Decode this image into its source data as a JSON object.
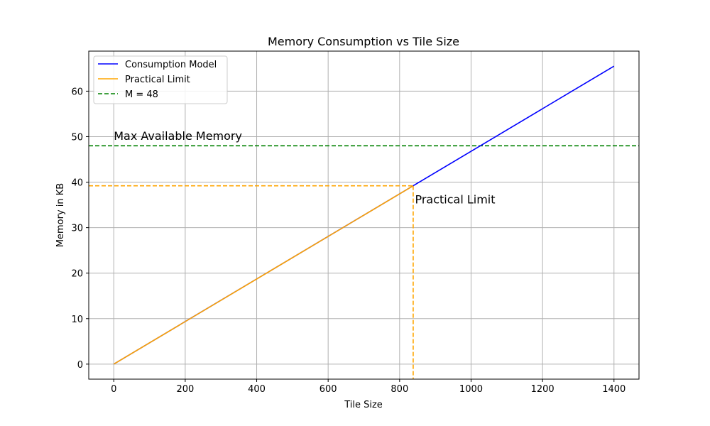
{
  "chart_data": {
    "type": "line",
    "title": "Memory Consumption vs Tile Size",
    "xlabel": "Tile Size",
    "ylabel": "Memory in KB",
    "xlim": [
      -70,
      1470
    ],
    "ylim": [
      -3.3,
      68.8
    ],
    "xticks": [
      0,
      200,
      400,
      600,
      800,
      1000,
      1200,
      1400
    ],
    "yticks": [
      0,
      10,
      20,
      30,
      40,
      50,
      60
    ],
    "grid": true,
    "legend_position": "top-left",
    "series": [
      {
        "name": "Consumption Model",
        "color": "#0000ff",
        "style": "solid",
        "x": [
          0,
          1400
        ],
        "y": [
          0,
          65.5
        ]
      },
      {
        "name": "Practical Limit",
        "color": "#ffa500",
        "style": "solid",
        "x": [
          0,
          838
        ],
        "y": [
          0,
          39.2
        ]
      }
    ],
    "reference_lines": [
      {
        "name": "M = 48",
        "orientation": "horizontal",
        "value": 48,
        "color": "#008000",
        "style": "dashed"
      }
    ],
    "guide_lines": {
      "color": "#ffa500",
      "style": "dashed",
      "point": {
        "x": 838,
        "y": 39.2
      }
    },
    "annotations": [
      {
        "text": "Max Available Memory",
        "x": 0,
        "y": 49.3
      },
      {
        "text": "Practical Limit",
        "x": 843,
        "y": 35.3
      }
    ]
  }
}
